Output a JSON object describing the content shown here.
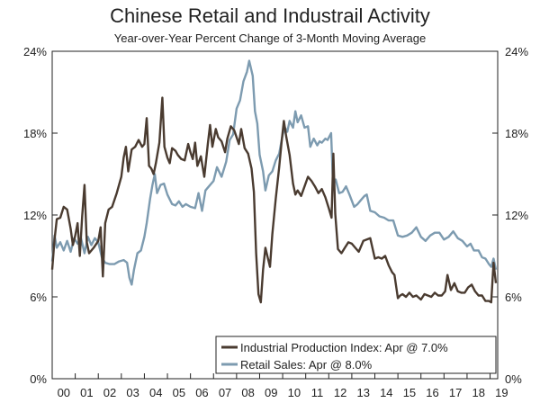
{
  "chart_data": {
    "type": "line",
    "title": "Chinese Retail and Industrail Activity",
    "subtitle": "Year-over-Year Percent Change of 3-Month Moving Average",
    "xlabel": "",
    "ylabel": "",
    "x_range": [
      2000.0,
      2019.33
    ],
    "ylim": [
      0,
      24
    ],
    "y_ticks": [
      0,
      6,
      12,
      18,
      24
    ],
    "y_tick_labels": [
      "0%",
      "6%",
      "12%",
      "18%",
      "24%"
    ],
    "x_tick_labels": [
      "00",
      "01",
      "02",
      "03",
      "04",
      "05",
      "06",
      "07",
      "08",
      "09",
      "10",
      "11",
      "12",
      "13",
      "14",
      "15",
      "16",
      "17",
      "18",
      "19"
    ],
    "legend_position": "bottom-right",
    "series": [
      {
        "name": "Industrial Production Index: Apr @ 7.0%",
        "color": "#4a3b30",
        "points": [
          [
            2000.0,
            8.0
          ],
          [
            2000.1,
            10.2
          ],
          [
            2000.2,
            11.7
          ],
          [
            2000.35,
            11.8
          ],
          [
            2000.5,
            12.6
          ],
          [
            2000.65,
            12.4
          ],
          [
            2000.8,
            11.0
          ],
          [
            2000.9,
            9.8
          ],
          [
            2001.0,
            10.5
          ],
          [
            2001.1,
            11.4
          ],
          [
            2001.2,
            9.0
          ],
          [
            2001.3,
            11.9
          ],
          [
            2001.4,
            14.2
          ],
          [
            2001.5,
            10.0
          ],
          [
            2001.6,
            9.2
          ],
          [
            2001.8,
            9.6
          ],
          [
            2002.0,
            10.1
          ],
          [
            2002.1,
            11.1
          ],
          [
            2002.2,
            7.5
          ],
          [
            2002.3,
            11.4
          ],
          [
            2002.45,
            12.4
          ],
          [
            2002.6,
            12.6
          ],
          [
            2002.8,
            13.6
          ],
          [
            2003.0,
            14.8
          ],
          [
            2003.1,
            16.2
          ],
          [
            2003.2,
            17.0
          ],
          [
            2003.3,
            15.2
          ],
          [
            2003.45,
            16.8
          ],
          [
            2003.6,
            17.0
          ],
          [
            2003.75,
            17.5
          ],
          [
            2003.9,
            17.0
          ],
          [
            2004.0,
            17.2
          ],
          [
            2004.1,
            19.1
          ],
          [
            2004.2,
            15.6
          ],
          [
            2004.3,
            15.4
          ],
          [
            2004.4,
            15.0
          ],
          [
            2004.5,
            15.8
          ],
          [
            2004.65,
            17.3
          ],
          [
            2004.78,
            20.6
          ],
          [
            2004.87,
            17.0
          ],
          [
            2005.0,
            16.2
          ],
          [
            2005.1,
            15.8
          ],
          [
            2005.2,
            16.9
          ],
          [
            2005.35,
            16.7
          ],
          [
            2005.45,
            16.4
          ],
          [
            2005.6,
            16.1
          ],
          [
            2005.75,
            16.0
          ],
          [
            2005.9,
            17.2
          ],
          [
            2006.0,
            16.6
          ],
          [
            2006.1,
            16.1
          ],
          [
            2006.2,
            17.3
          ],
          [
            2006.3,
            15.6
          ],
          [
            2006.45,
            16.3
          ],
          [
            2006.6,
            14.8
          ],
          [
            2006.75,
            17.2
          ],
          [
            2006.85,
            18.6
          ],
          [
            2006.95,
            17.0
          ],
          [
            2007.1,
            18.3
          ],
          [
            2007.2,
            17.7
          ],
          [
            2007.35,
            17.4
          ],
          [
            2007.5,
            16.6
          ],
          [
            2007.6,
            17.6
          ],
          [
            2007.75,
            18.5
          ],
          [
            2007.9,
            18.2
          ],
          [
            2008.1,
            17.2
          ],
          [
            2008.2,
            18.3
          ],
          [
            2008.35,
            16.9
          ],
          [
            2008.5,
            16.5
          ],
          [
            2008.65,
            15.4
          ],
          [
            2008.75,
            13.7
          ],
          [
            2008.85,
            9.2
          ],
          [
            2008.95,
            6.2
          ],
          [
            2009.05,
            5.6
          ],
          [
            2009.15,
            8.0
          ],
          [
            2009.25,
            9.6
          ],
          [
            2009.35,
            8.9
          ],
          [
            2009.45,
            8.2
          ],
          [
            2009.55,
            10.6
          ],
          [
            2009.7,
            13.2
          ],
          [
            2009.85,
            15.5
          ],
          [
            2009.95,
            17.3
          ],
          [
            2010.05,
            18.9
          ],
          [
            2010.15,
            17.8
          ],
          [
            2010.3,
            16.4
          ],
          [
            2010.45,
            14.3
          ],
          [
            2010.55,
            13.5
          ],
          [
            2010.65,
            13.8
          ],
          [
            2010.8,
            13.4
          ],
          [
            2010.95,
            14.1
          ],
          [
            2011.1,
            14.8
          ],
          [
            2011.25,
            14.5
          ],
          [
            2011.4,
            14.1
          ],
          [
            2011.55,
            13.6
          ],
          [
            2011.7,
            13.9
          ],
          [
            2011.85,
            13.3
          ],
          [
            2012.0,
            12.5
          ],
          [
            2012.12,
            11.8
          ],
          [
            2012.2,
            16.5
          ],
          [
            2012.28,
            12.1
          ],
          [
            2012.4,
            9.5
          ],
          [
            2012.55,
            9.2
          ],
          [
            2012.7,
            9.6
          ],
          [
            2012.85,
            10.0
          ],
          [
            2013.0,
            9.9
          ],
          [
            2013.15,
            9.6
          ],
          [
            2013.3,
            9.3
          ],
          [
            2013.5,
            10.1
          ],
          [
            2013.65,
            10.2
          ],
          [
            2013.8,
            10.3
          ],
          [
            2014.0,
            8.8
          ],
          [
            2014.15,
            8.9
          ],
          [
            2014.3,
            8.8
          ],
          [
            2014.45,
            9.0
          ],
          [
            2014.6,
            8.3
          ],
          [
            2014.75,
            7.8
          ],
          [
            2014.85,
            7.6
          ],
          [
            2015.0,
            5.9
          ],
          [
            2015.1,
            6.1
          ],
          [
            2015.2,
            6.2
          ],
          [
            2015.35,
            6.0
          ],
          [
            2015.5,
            6.3
          ],
          [
            2015.65,
            6.0
          ],
          [
            2015.8,
            6.1
          ],
          [
            2016.0,
            5.8
          ],
          [
            2016.15,
            6.2
          ],
          [
            2016.3,
            6.1
          ],
          [
            2016.45,
            6.0
          ],
          [
            2016.6,
            6.3
          ],
          [
            2016.75,
            6.1
          ],
          [
            2016.9,
            6.1
          ],
          [
            2017.05,
            6.4
          ],
          [
            2017.15,
            7.6
          ],
          [
            2017.3,
            6.5
          ],
          [
            2017.45,
            7.0
          ],
          [
            2017.6,
            6.4
          ],
          [
            2017.75,
            6.3
          ],
          [
            2017.9,
            6.3
          ],
          [
            2018.05,
            6.7
          ],
          [
            2018.2,
            6.9
          ],
          [
            2018.35,
            6.4
          ],
          [
            2018.5,
            6.1
          ],
          [
            2018.65,
            6.1
          ],
          [
            2018.8,
            5.7
          ],
          [
            2018.95,
            5.7
          ],
          [
            2019.05,
            5.6
          ],
          [
            2019.15,
            8.5
          ],
          [
            2019.25,
            7.0
          ]
        ]
      },
      {
        "name": "Retail Sales: Apr @ 8.0%",
        "color": "#7d9bb0",
        "points": [
          [
            2000.0,
            8.6
          ],
          [
            2000.1,
            10.5
          ],
          [
            2000.2,
            9.6
          ],
          [
            2000.35,
            10.0
          ],
          [
            2000.5,
            9.4
          ],
          [
            2000.65,
            10.1
          ],
          [
            2000.8,
            9.3
          ],
          [
            2000.95,
            10.3
          ],
          [
            2001.1,
            9.9
          ],
          [
            2001.25,
            10.3
          ],
          [
            2001.4,
            9.2
          ],
          [
            2001.55,
            10.4
          ],
          [
            2001.7,
            9.8
          ],
          [
            2001.85,
            10.3
          ],
          [
            2002.0,
            10.0
          ],
          [
            2002.15,
            8.9
          ],
          [
            2002.3,
            8.5
          ],
          [
            2002.5,
            8.4
          ],
          [
            2002.7,
            8.4
          ],
          [
            2002.9,
            8.6
          ],
          [
            2003.1,
            8.7
          ],
          [
            2003.25,
            8.5
          ],
          [
            2003.35,
            7.4
          ],
          [
            2003.45,
            6.9
          ],
          [
            2003.55,
            8.0
          ],
          [
            2003.7,
            9.2
          ],
          [
            2003.85,
            9.4
          ],
          [
            2004.0,
            10.4
          ],
          [
            2004.1,
            11.4
          ],
          [
            2004.25,
            13.2
          ],
          [
            2004.35,
            14.2
          ],
          [
            2004.45,
            15.0
          ],
          [
            2004.55,
            13.6
          ],
          [
            2004.7,
            14.2
          ],
          [
            2004.85,
            14.3
          ],
          [
            2005.0,
            13.5
          ],
          [
            2005.2,
            12.8
          ],
          [
            2005.35,
            12.7
          ],
          [
            2005.5,
            13.0
          ],
          [
            2005.65,
            12.6
          ],
          [
            2005.8,
            12.8
          ],
          [
            2006.0,
            12.6
          ],
          [
            2006.2,
            12.5
          ],
          [
            2006.35,
            13.6
          ],
          [
            2006.5,
            12.3
          ],
          [
            2006.65,
            13.8
          ],
          [
            2006.8,
            14.1
          ],
          [
            2007.0,
            14.5
          ],
          [
            2007.15,
            15.5
          ],
          [
            2007.35,
            14.8
          ],
          [
            2007.55,
            15.9
          ],
          [
            2007.7,
            17.5
          ],
          [
            2007.85,
            17.9
          ],
          [
            2008.0,
            19.8
          ],
          [
            2008.15,
            20.4
          ],
          [
            2008.3,
            21.8
          ],
          [
            2008.45,
            22.5
          ],
          [
            2008.55,
            23.3
          ],
          [
            2008.7,
            22.2
          ],
          [
            2008.8,
            19.6
          ],
          [
            2008.9,
            18.7
          ],
          [
            2009.0,
            16.4
          ],
          [
            2009.15,
            15.2
          ],
          [
            2009.25,
            13.8
          ],
          [
            2009.4,
            14.9
          ],
          [
            2009.55,
            15.2
          ],
          [
            2009.7,
            16.0
          ],
          [
            2009.85,
            16.5
          ],
          [
            2010.0,
            17.9
          ],
          [
            2010.1,
            18.4
          ],
          [
            2010.2,
            18.1
          ],
          [
            2010.3,
            18.9
          ],
          [
            2010.45,
            18.4
          ],
          [
            2010.55,
            19.6
          ],
          [
            2010.65,
            18.8
          ],
          [
            2010.8,
            19.3
          ],
          [
            2010.95,
            18.4
          ],
          [
            2011.1,
            18.5
          ],
          [
            2011.2,
            17.0
          ],
          [
            2011.35,
            17.6
          ],
          [
            2011.5,
            17.1
          ],
          [
            2011.6,
            17.4
          ],
          [
            2011.7,
            17.3
          ],
          [
            2011.85,
            17.6
          ],
          [
            2011.95,
            17.5
          ],
          [
            2012.1,
            18.0
          ],
          [
            2012.18,
            14.5
          ],
          [
            2012.3,
            14.6
          ],
          [
            2012.45,
            13.6
          ],
          [
            2012.6,
            13.7
          ],
          [
            2012.75,
            14.1
          ],
          [
            2012.9,
            13.5
          ],
          [
            2013.1,
            12.6
          ],
          [
            2013.25,
            12.8
          ],
          [
            2013.4,
            13.1
          ],
          [
            2013.55,
            13.4
          ],
          [
            2013.65,
            13.5
          ],
          [
            2013.8,
            12.3
          ],
          [
            2014.0,
            12.2
          ],
          [
            2014.2,
            11.9
          ],
          [
            2014.4,
            11.8
          ],
          [
            2014.6,
            11.6
          ],
          [
            2014.8,
            11.6
          ],
          [
            2015.0,
            10.5
          ],
          [
            2015.2,
            10.4
          ],
          [
            2015.4,
            10.5
          ],
          [
            2015.6,
            10.7
          ],
          [
            2015.8,
            11.1
          ],
          [
            2016.0,
            10.4
          ],
          [
            2016.2,
            10.1
          ],
          [
            2016.4,
            10.5
          ],
          [
            2016.6,
            10.7
          ],
          [
            2016.8,
            10.7
          ],
          [
            2017.0,
            10.2
          ],
          [
            2017.2,
            10.4
          ],
          [
            2017.4,
            10.8
          ],
          [
            2017.6,
            10.3
          ],
          [
            2017.8,
            10.1
          ],
          [
            2018.0,
            9.7
          ],
          [
            2018.15,
            9.9
          ],
          [
            2018.3,
            9.4
          ],
          [
            2018.5,
            9.4
          ],
          [
            2018.65,
            8.9
          ],
          [
            2018.8,
            8.8
          ],
          [
            2018.95,
            8.4
          ],
          [
            2019.05,
            8.2
          ],
          [
            2019.15,
            8.8
          ],
          [
            2019.25,
            8.0
          ]
        ]
      }
    ]
  }
}
